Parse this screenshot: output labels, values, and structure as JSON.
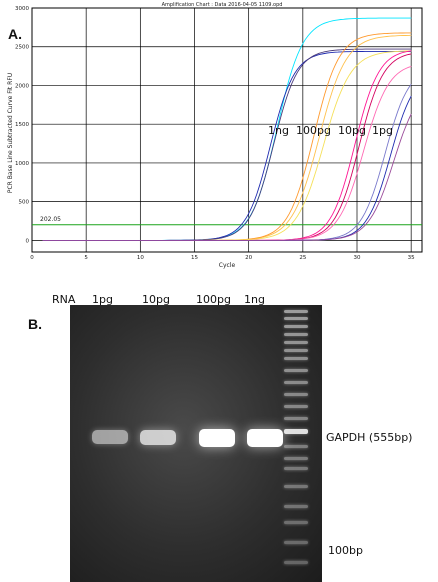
{
  "panel_a": {
    "label": "A.",
    "header": "Amplification Chart : Data 2016-04-05 1109.opd",
    "threshold_label": "202.05",
    "annotations": [
      "1ng",
      "100pg",
      "10pg",
      "1pg"
    ]
  },
  "chart_data": {
    "type": "line",
    "title": "Amplification Chart : Data 2016-04-05 1109.opd",
    "xlabel": "Cycle",
    "ylabel": "PCR Base Line Subtracted Curve Fit RFU",
    "xlim": [
      0,
      36
    ],
    "ylim": [
      -150,
      3000
    ],
    "x_ticks": [
      0,
      5,
      10,
      15,
      20,
      25,
      30,
      35
    ],
    "y_ticks": [
      0,
      500,
      1000,
      1500,
      2000,
      2500,
      3000
    ],
    "grid": true,
    "threshold": 202.05,
    "series": [
      {
        "color": "#00e5ff",
        "plateau": 2870,
        "midpoint": 22.6,
        "slope": 0.85
      },
      {
        "color": "#1f2bb0",
        "plateau": 2440,
        "midpoint": 22.0,
        "slope": 0.9
      },
      {
        "color": "#4a3a7a",
        "plateau": 2470,
        "midpoint": 22.3,
        "slope": 0.9
      },
      {
        "color": "#ffc14d",
        "plateau": 2650,
        "midpoint": 26.5,
        "slope": 0.8
      },
      {
        "color": "#ff9a2e",
        "plateau": 2680,
        "midpoint": 26.0,
        "slope": 0.85
      },
      {
        "color": "#f5e05a",
        "plateau": 2450,
        "midpoint": 26.9,
        "slope": 0.8
      },
      {
        "color": "#ff1493",
        "plateau": 2470,
        "midpoint": 29.8,
        "slope": 0.9
      },
      {
        "color": "#d4005f",
        "plateau": 2440,
        "midpoint": 30.2,
        "slope": 0.9
      },
      {
        "color": "#ff69b4",
        "plateau": 2300,
        "midpoint": 30.6,
        "slope": 0.85
      },
      {
        "color": "#7a7acc",
        "plateau": 2250,
        "midpoint": 32.6,
        "slope": 0.9
      },
      {
        "color": "#1f2bb0",
        "plateau": 2200,
        "midpoint": 33.1,
        "slope": 0.9
      },
      {
        "color": "#9a4a9a",
        "plateau": 2050,
        "midpoint": 33.4,
        "slope": 0.85
      }
    ]
  },
  "panel_b": {
    "label": "B.",
    "lanes_header": [
      "RNA",
      "1pg",
      "10pg",
      "100pg",
      "1ng"
    ],
    "band_label": "GAPDH (555bp)",
    "ladder_label": "100bp",
    "band_intensities": [
      0.3,
      0.6,
      1.0,
      1.0
    ]
  }
}
